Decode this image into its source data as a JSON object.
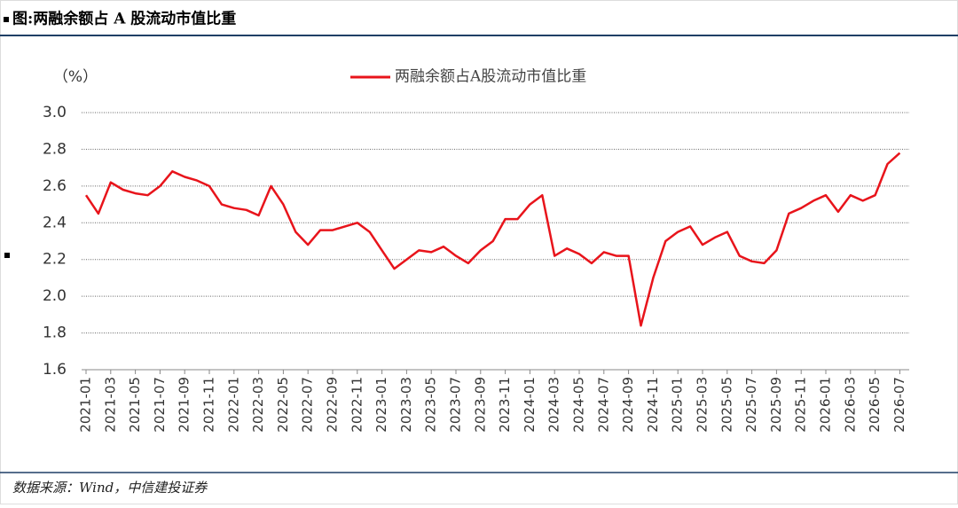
{
  "chart_data": {
    "type": "line",
    "title": "图:两融余额占 A 股流动市值比重",
    "source": "数据来源：Wind，中信建投证券",
    "y_label": "（%）",
    "categories": [
      "2021-01",
      null,
      "2021-03",
      null,
      "2021-05",
      null,
      "2021-07",
      null,
      "2021-09",
      null,
      "2021-11",
      null,
      "2022-01",
      null,
      "2022-03",
      null,
      "2022-05",
      null,
      "2022-07",
      null,
      "2022-09",
      null,
      "2022-11",
      null,
      "2023-01",
      null,
      "2023-03",
      null,
      "2023-05",
      null,
      "2023-07",
      null,
      "2023-09",
      null,
      "2023-11",
      null,
      "2024-01",
      null,
      "2024-03",
      null,
      "2024-05",
      null,
      "2024-07",
      null,
      "2024-09",
      null,
      "2024-11",
      null,
      "2025-01",
      null,
      "2025-03",
      null,
      "2025-05",
      null,
      "2025-07",
      null,
      "2025-09",
      null,
      "2025-11",
      null,
      "2026-01",
      null,
      "2026-03",
      null,
      "2026-05",
      null,
      "2026-07"
    ],
    "series": [
      {
        "name": "两融余额占A股流动市值比重",
        "color": "#e8141b",
        "values": [
          2.55,
          2.45,
          2.62,
          2.58,
          2.56,
          2.55,
          2.6,
          2.68,
          2.65,
          2.63,
          2.6,
          2.5,
          2.48,
          2.47,
          2.44,
          2.6,
          2.5,
          2.35,
          2.28,
          2.36,
          2.36,
          2.38,
          2.4,
          2.35,
          2.25,
          2.15,
          2.2,
          2.25,
          2.24,
          2.27,
          2.22,
          2.18,
          2.25,
          2.3,
          2.42,
          2.42,
          2.5,
          2.55,
          2.22,
          2.26,
          2.23,
          2.18,
          2.24,
          2.22,
          2.22,
          1.84,
          2.1,
          2.3,
          2.35,
          2.38,
          2.28,
          2.32,
          2.35,
          2.22,
          2.19,
          2.18,
          2.25,
          2.45,
          2.48,
          2.52,
          2.55,
          2.46,
          2.55,
          2.52,
          2.55,
          2.72,
          2.78
        ]
      }
    ],
    "ylim": [
      1.6,
      3.0
    ],
    "yticks": [
      {
        "value": 1.6,
        "label": "1.6"
      },
      {
        "value": 1.8,
        "label": "1.8"
      },
      {
        "value": 2,
        "label": "2.0"
      },
      {
        "value": 2.2,
        "label": "2.2"
      },
      {
        "value": 2.4,
        "label": "2.4"
      },
      {
        "value": 2.6,
        "label": "2.6"
      },
      {
        "value": 2.8,
        "label": "2.8"
      },
      {
        "value": 3,
        "label": "3.0"
      }
    ],
    "grid": true
  }
}
